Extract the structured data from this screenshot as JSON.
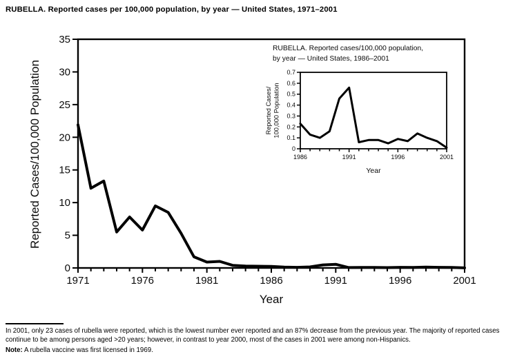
{
  "figure": {
    "title": "RUBELLA. Reported cases per 100,000 population, by year — United States, 1971–2001"
  },
  "footnote": {
    "text": "In 2001, only 23 cases of rubella were reported, which is the lowest number ever reported and an 87% decrease from the previous year. The majority of reported cases continue to be among persons aged >20 years; however, in contrast to year 2000, most of the cases in 2001 were among non-Hispanics.",
    "note_label": "Note:",
    "note_text": "A rubella vaccine was first licensed in 1969."
  },
  "colors": {
    "ink": "#000000",
    "background": "#ffffff"
  },
  "chart_data": [
    {
      "id": "main",
      "type": "line",
      "title": "",
      "x": [
        1971,
        1972,
        1973,
        1974,
        1975,
        1976,
        1977,
        1978,
        1979,
        1980,
        1981,
        1982,
        1983,
        1984,
        1985,
        1986,
        1987,
        1988,
        1989,
        1990,
        1991,
        1992,
        1993,
        1994,
        1995,
        1996,
        1997,
        1998,
        1999,
        2000,
        2001
      ],
      "values": [
        21.9,
        12.2,
        13.3,
        5.5,
        7.8,
        5.8,
        9.5,
        8.5,
        5.3,
        1.7,
        0.9,
        1.0,
        0.4,
        0.3,
        0.26,
        0.23,
        0.13,
        0.1,
        0.16,
        0.46,
        0.56,
        0.06,
        0.08,
        0.08,
        0.05,
        0.09,
        0.07,
        0.14,
        0.1,
        0.07,
        0.01
      ],
      "xlabel": "Year",
      "ylabel": "Reported Cases/100,000 Population",
      "xlim": [
        1971,
        2001
      ],
      "ylim": [
        0,
        35
      ],
      "yticks": [
        0,
        5,
        10,
        15,
        20,
        25,
        30,
        35
      ],
      "xticks": [
        1971,
        1976,
        1981,
        1986,
        1991,
        1996,
        2001
      ],
      "grid": false,
      "legend": "none",
      "line_color": "#000000"
    },
    {
      "id": "inset",
      "type": "line",
      "title_lines": [
        "RUBELLA. Reported cases/100,000 population,",
        "by year — United States, 1986–2001"
      ],
      "x": [
        1986,
        1987,
        1988,
        1989,
        1990,
        1991,
        1992,
        1993,
        1994,
        1995,
        1996,
        1997,
        1998,
        1999,
        2000,
        2001
      ],
      "values": [
        0.23,
        0.13,
        0.1,
        0.16,
        0.46,
        0.56,
        0.06,
        0.08,
        0.08,
        0.05,
        0.09,
        0.07,
        0.14,
        0.1,
        0.07,
        0.01
      ],
      "xlabel": "Year",
      "ylabel_lines": [
        "Reported Cases/",
        "100,000 Population"
      ],
      "xlim": [
        1986,
        2001
      ],
      "ylim": [
        0,
        0.7
      ],
      "yticks": [
        0,
        0.1,
        0.2,
        0.3,
        0.4,
        0.5,
        0.6,
        0.7
      ],
      "xticks": [
        1986,
        1991,
        1996,
        2001
      ],
      "grid": false,
      "legend": "none",
      "line_color": "#000000"
    }
  ]
}
